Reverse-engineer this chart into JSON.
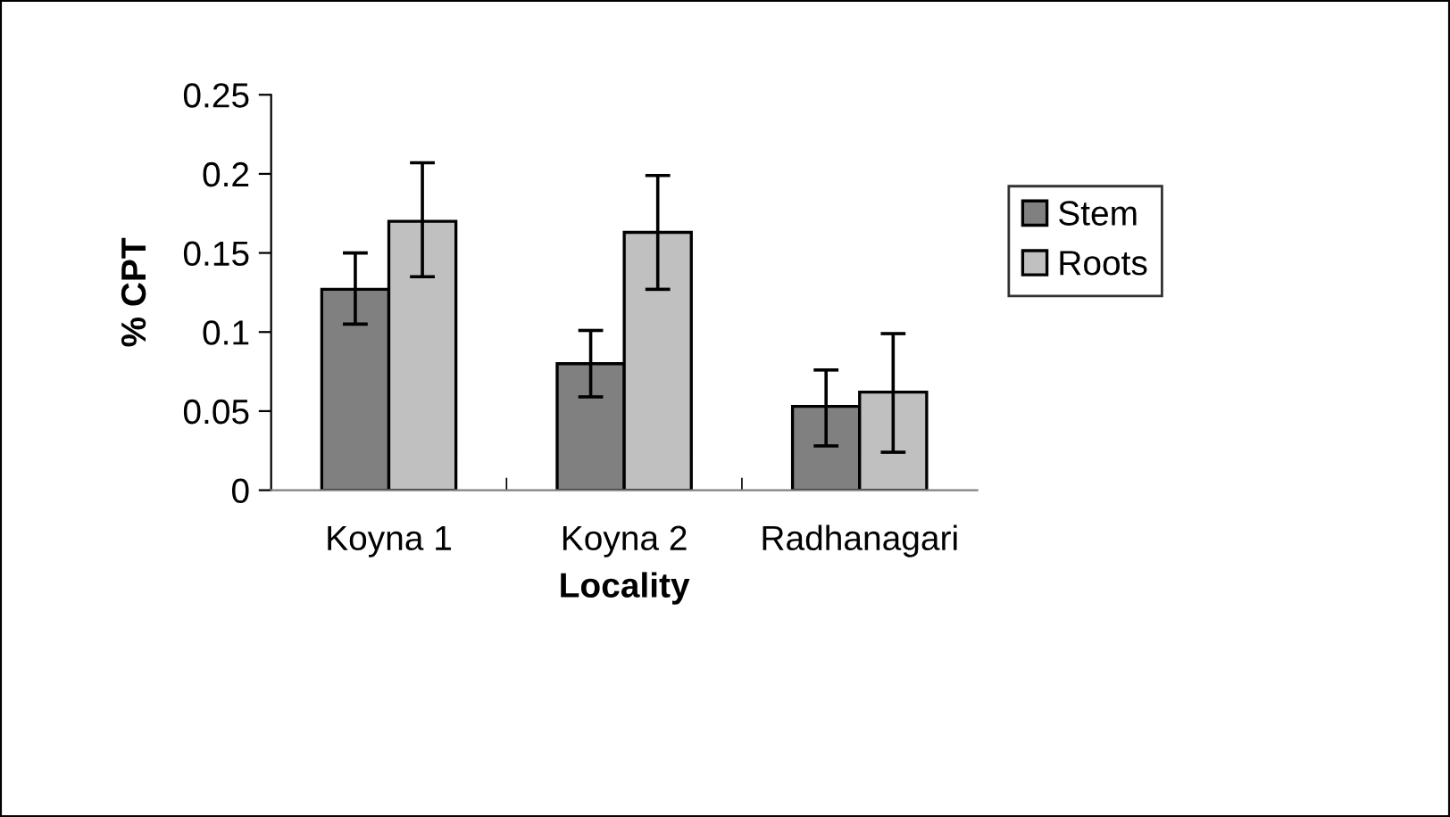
{
  "chart_data": {
    "type": "bar",
    "xlabel": "Locality",
    "ylabel": "% CPT",
    "categories": [
      "Koyna 1",
      "Koyna 2",
      "Radhanagari"
    ],
    "series": [
      {
        "name": "Stem",
        "color": "#808080",
        "values": [
          0.127,
          0.08,
          0.053
        ],
        "errors": [
          [
            0.105,
            0.15
          ],
          [
            0.059,
            0.101
          ],
          [
            0.028,
            0.076
          ]
        ]
      },
      {
        "name": "Roots",
        "color": "#c0c0c0",
        "values": [
          0.17,
          0.163,
          0.062
        ],
        "errors": [
          [
            0.135,
            0.207
          ],
          [
            0.127,
            0.199
          ],
          [
            0.024,
            0.099
          ]
        ]
      }
    ],
    "ylim": [
      0,
      0.25
    ],
    "yticks": [
      0,
      0.05,
      0.1,
      0.15,
      0.2,
      0.25
    ],
    "grid": false,
    "legend": "right"
  }
}
